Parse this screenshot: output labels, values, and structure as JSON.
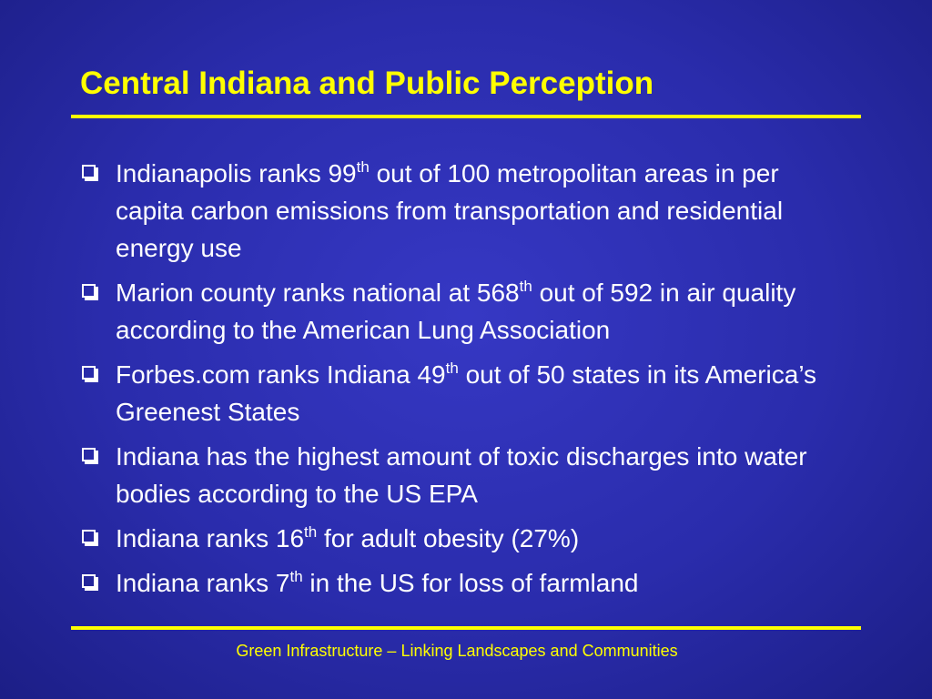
{
  "title": "Central Indiana and Public Perception",
  "bullets": [
    {
      "text": "Indianapolis ranks 99",
      "sup": "th",
      "rest": " out of 100 metropolitan areas in per capita carbon emissions from transportation and residential energy use"
    },
    {
      "text": "Marion county ranks national at 568",
      "sup": "th",
      "rest": " out of 592 in air quality according to the American Lung Association"
    },
    {
      "text": "Forbes.com ranks Indiana 49",
      "sup": "th",
      "rest": " out of 50 states in its America’s Greenest States"
    },
    {
      "text": "Indiana has the highest amount of toxic discharges into water bodies according to the US EPA"
    },
    {
      "text": "Indiana ranks 16",
      "sup": "th",
      "rest": " for adult obesity (27%)"
    },
    {
      "text": "Indiana ranks 7",
      "sup": "th",
      "rest": " in the US for loss of farmland"
    }
  ],
  "footer": "Green Infrastructure – Linking Landscapes and Communities"
}
